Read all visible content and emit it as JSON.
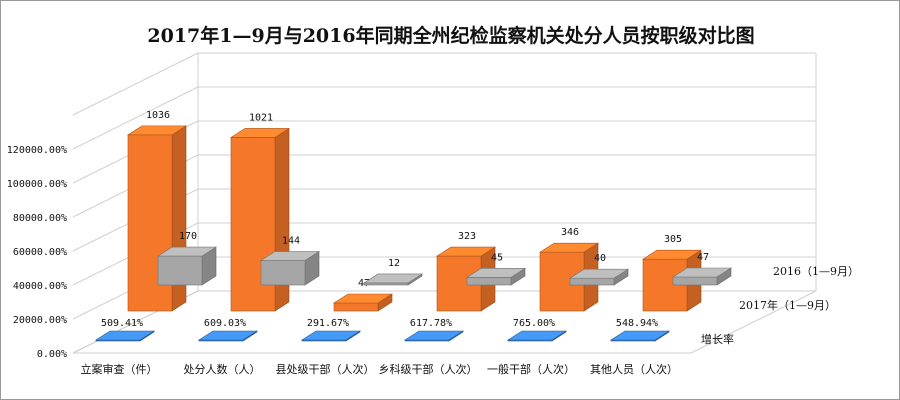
{
  "chart_data": {
    "type": "bar",
    "title": "2017年1—9月与2016年同期全州纪检监察机关处分人员按职级对比图",
    "categories": [
      "立案审查（件）",
      "处分人数（人）",
      "县处级干部（人次）",
      "乡科级干部（人次）",
      "一般干部（人次）",
      "其他人员（人次）"
    ],
    "series": [
      {
        "name": "增长率",
        "values": [
          509.41,
          609.03,
          291.67,
          617.78,
          765.0,
          548.94
        ],
        "labels": [
          "509.41%",
          "609.03%",
          "291.67%",
          "617.78%",
          "765.00%",
          "548.94%"
        ],
        "color": "#3b86d8"
      },
      {
        "name": "2017年（1—9月）",
        "values": [
          1036,
          1021,
          47,
          323,
          346,
          305
        ],
        "labels": [
          "1036",
          "1021",
          "47",
          "323",
          "346",
          "305"
        ],
        "color": "#f5782a"
      },
      {
        "name": "2016（1—9月）",
        "values": [
          170,
          144,
          12,
          45,
          40,
          47
        ],
        "labels": [
          "170",
          "144",
          "12",
          "45",
          "40",
          "47"
        ],
        "color": "#a6a6a6"
      }
    ],
    "yticks": [
      "0.00%",
      "20000.00%",
      "40000.00%",
      "60000.00%",
      "80000.00%",
      "100000.00%",
      "120000.00%"
    ],
    "ylim": [
      0,
      140000
    ],
    "ylabel": "",
    "xlabel": "",
    "grid": true,
    "legend": "right (depth axis)"
  }
}
